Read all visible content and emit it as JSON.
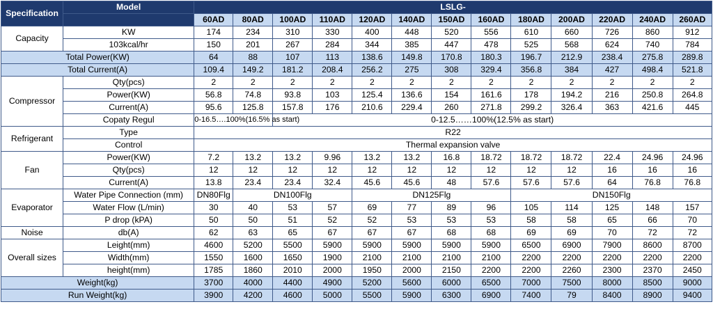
{
  "header": {
    "specification": "Specification",
    "model": "Model",
    "series": "LSLG-",
    "models": [
      "60AD",
      "80AD",
      "100AD",
      "110AD",
      "120AD",
      "140AD",
      "150AD",
      "160AD",
      "180AD",
      "200AD",
      "220AD",
      "240AD",
      "260AD"
    ]
  },
  "capacity": {
    "group": "Capacity",
    "kw": {
      "label": "KW",
      "values": [
        "174",
        "234",
        "310",
        "330",
        "400",
        "448",
        "520",
        "556",
        "610",
        "660",
        "726",
        "860",
        "912"
      ]
    },
    "kcal": {
      "label": "103kcal/hr",
      "values": [
        "150",
        "201",
        "267",
        "284",
        "344",
        "385",
        "447",
        "478",
        "525",
        "568",
        "624",
        "740",
        "784"
      ]
    }
  },
  "total_power": {
    "label": "Total Power(KW)",
    "values": [
      "64",
      "88",
      "107",
      "113",
      "138.6",
      "149.8",
      "170.8",
      "180.3",
      "196.7",
      "212.9",
      "238.4",
      "275.8",
      "289.8"
    ]
  },
  "total_current": {
    "label": "Total Current(A)",
    "values": [
      "109.4",
      "149.2",
      "181.2",
      "208.4",
      "256.2",
      "275",
      "308",
      "329.4",
      "356.8",
      "384",
      "427",
      "498.4",
      "521.8"
    ]
  },
  "compressor": {
    "group": "Compressor",
    "qty": {
      "label": "Qty(pcs)",
      "values": [
        "2",
        "2",
        "2",
        "2",
        "2",
        "2",
        "2",
        "2",
        "2",
        "2",
        "2",
        "2",
        "2"
      ]
    },
    "power": {
      "label": "Power(KW)",
      "values": [
        "56.8",
        "74.8",
        "93.8",
        "103",
        "125.4",
        "136.6",
        "154",
        "161.6",
        "178",
        "194.2",
        "216",
        "250.8",
        "264.8"
      ]
    },
    "current": {
      "label": "Current(A)",
      "values": [
        "95.6",
        "125.8",
        "157.8",
        "176",
        "210.6",
        "229.4",
        "260",
        "271.8",
        "299.2",
        "326.4",
        "363",
        "421.6",
        "445"
      ]
    },
    "regul": {
      "label": "Copaty Regul",
      "first": "0-16.5….100%(16.5% as start)",
      "rest": "0-12.5……100%(12.5% as start)"
    }
  },
  "refrigerant": {
    "group": "Refrigerant",
    "type": {
      "label": "Type",
      "value": "R22"
    },
    "control": {
      "label": "Control",
      "value": "Thermal expansion valve"
    }
  },
  "fan": {
    "group": "Fan",
    "power": {
      "label": "Power(KW)",
      "values": [
        "7.2",
        "13.2",
        "13.2",
        "9.96",
        "13.2",
        "13.2",
        "16.8",
        "18.72",
        "18.72",
        "18.72",
        "22.4",
        "24.96",
        "24.96"
      ]
    },
    "qty": {
      "label": "Qty(pcs)",
      "values": [
        "12",
        "12",
        "12",
        "12",
        "12",
        "12",
        "12",
        "12",
        "12",
        "12",
        "16",
        "16",
        "16"
      ]
    },
    "current": {
      "label": "Current(A)",
      "values": [
        "13.8",
        "23.4",
        "23.4",
        "32.4",
        "45.6",
        "45.6",
        "48",
        "57.6",
        "57.6",
        "57.6",
        "64",
        "76.8",
        "76.8"
      ]
    }
  },
  "evaporator": {
    "group": "Evaporator",
    "pipe": {
      "label": "Water Pipe Connection (mm)",
      "g1": "DN80Flg",
      "g2": "DN100Flg",
      "g3": "DN125Flg",
      "g4": "DN150Flg"
    },
    "flow": {
      "label": "Water Flow (L/min)",
      "values": [
        "30",
        "40",
        "53",
        "57",
        "69",
        "77",
        "89",
        "96",
        "105",
        "114",
        "125",
        "148",
        "157"
      ]
    },
    "drop": {
      "label": "P drop (kPA)",
      "values": [
        "50",
        "50",
        "51",
        "52",
        "52",
        "53",
        "53",
        "53",
        "58",
        "58",
        "65",
        "66",
        "70"
      ]
    }
  },
  "noise": {
    "group": "Noise",
    "label": "db(A)",
    "values": [
      "62",
      "63",
      "65",
      "67",
      "67",
      "67",
      "68",
      "68",
      "69",
      "69",
      "70",
      "72",
      "72"
    ]
  },
  "sizes": {
    "group": "Overall sizes",
    "length": {
      "label": "Leight(mm)",
      "values": [
        "4600",
        "5200",
        "5500",
        "5900",
        "5900",
        "5900",
        "5900",
        "5900",
        "6500",
        "6900",
        "7900",
        "8600",
        "8700"
      ]
    },
    "width": {
      "label": "Width(mm)",
      "values": [
        "1550",
        "1600",
        "1650",
        "1900",
        "2100",
        "2100",
        "2100",
        "2100",
        "2200",
        "2200",
        "2200",
        "2200",
        "2200"
      ]
    },
    "height": {
      "label": "height(mm)",
      "values": [
        "1785",
        "1860",
        "2010",
        "2000",
        "1950",
        "2000",
        "2150",
        "2200",
        "2200",
        "2260",
        "2300",
        "2370",
        "2450"
      ]
    }
  },
  "weight": {
    "label": "Weight(kg)",
    "values": [
      "3700",
      "4000",
      "4400",
      "4900",
      "5200",
      "5600",
      "6000",
      "6500",
      "7000",
      "7500",
      "8000",
      "8500",
      "9000"
    ]
  },
  "run_weight": {
    "label": "Run Weight(kg)",
    "values": [
      "3900",
      "4200",
      "4600",
      "5000",
      "5500",
      "5900",
      "6300",
      "6900",
      "7400",
      "79",
      "8400",
      "8900",
      "9400"
    ]
  },
  "colors": {
    "header_bg": "#1f3a6e",
    "highlight_bg": "#c6d9f1",
    "border": "#3f5a8a"
  }
}
